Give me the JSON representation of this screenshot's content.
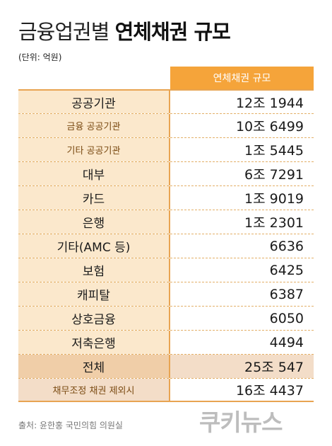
{
  "header": {
    "title_light": "금융업권별",
    "title_bold": "연체채권 규모",
    "unit": "(단위: 억원)"
  },
  "chart_data": {
    "type": "table",
    "column_header": "연체채권 규모",
    "rows": [
      {
        "label": "공공기관",
        "value": "12조 1944",
        "small": false
      },
      {
        "label": "금융 공공기관",
        "value": "10조 6499",
        "small": true
      },
      {
        "label": "기타 공공기관",
        "value": "1조 5445",
        "small": true
      },
      {
        "label": "대부",
        "value": "6조 7291",
        "small": false
      },
      {
        "label": "카드",
        "value": "1조 9019",
        "small": false
      },
      {
        "label": "은행",
        "value": "1조 2301",
        "small": false
      },
      {
        "label": "기타(AMC 등)",
        "value": "6636",
        "small": false
      },
      {
        "label": "보험",
        "value": "6425",
        "small": false
      },
      {
        "label": "캐피탈",
        "value": "6387",
        "small": false
      },
      {
        "label": "상호금융",
        "value": "6050",
        "small": false
      },
      {
        "label": "저축은행",
        "value": "4494",
        "small": false
      },
      {
        "label": "전체",
        "value": "25조 547",
        "small": false,
        "kind": "total"
      },
      {
        "label": "채무조정 채권 제외시",
        "value": "16조 4437",
        "small": true,
        "kind": "excl"
      }
    ]
  },
  "footer": {
    "source": "출처: 윤한홍 국민의힘 의원실",
    "logo": "쿠키뉴스"
  }
}
